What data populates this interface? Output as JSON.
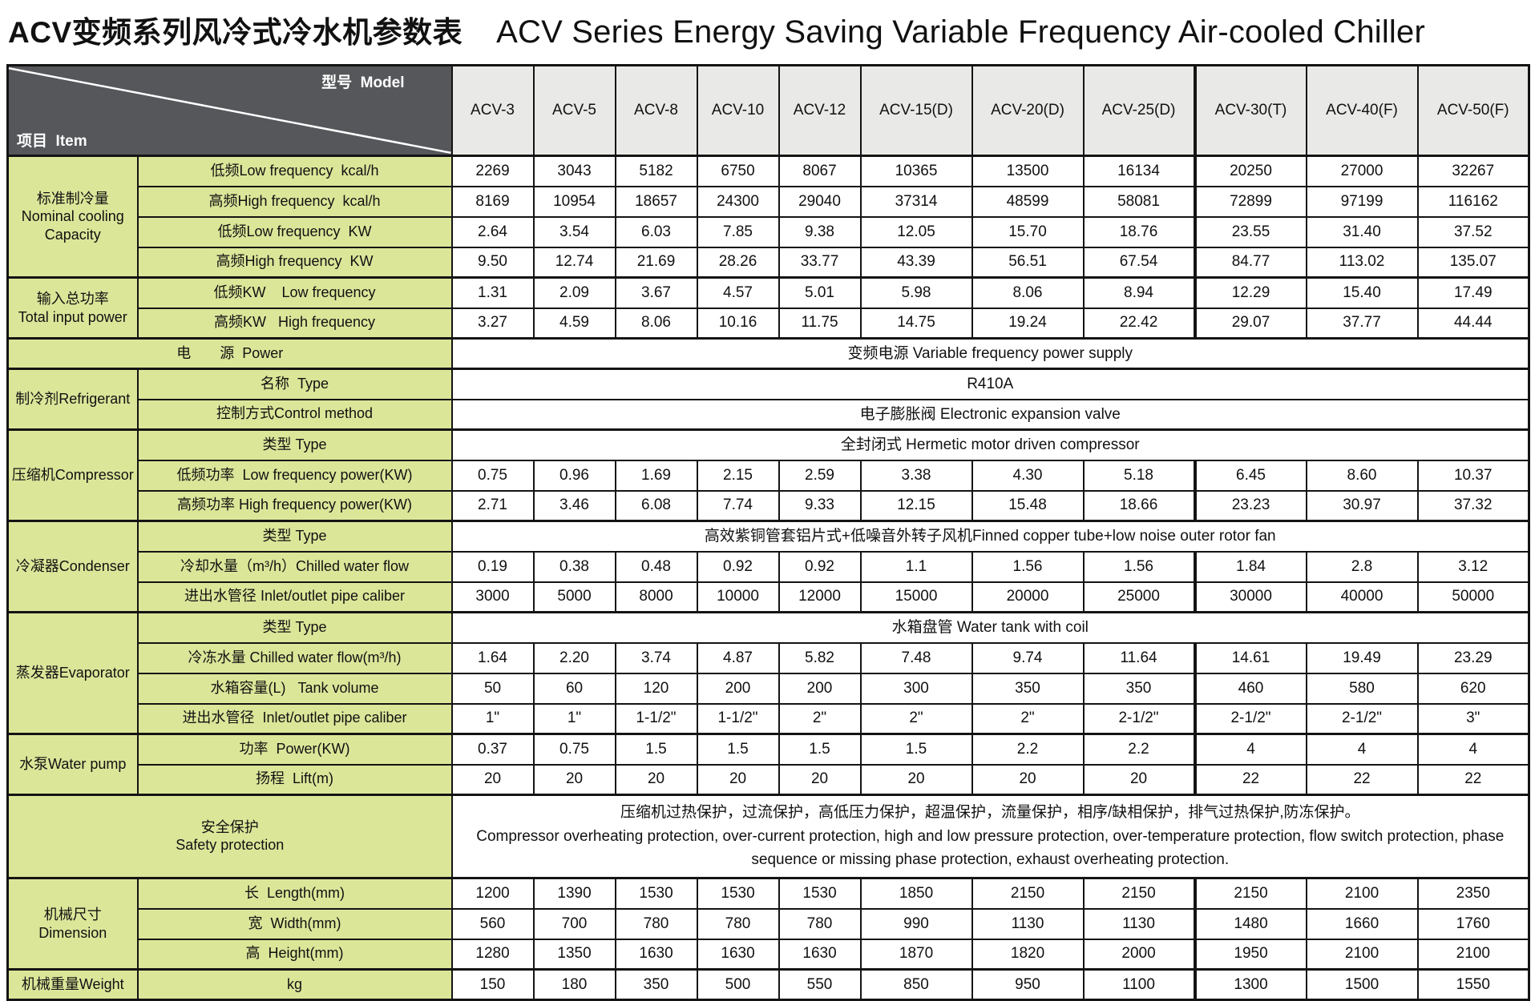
{
  "title": {
    "zh": "ACV变频系列风冷式冷水机参数表",
    "en": "ACV Series Energy Saving Variable Frequency Air-cooled Chiller"
  },
  "table": {
    "corner": {
      "model_label": "型号  Model",
      "item_label": "项目  Item"
    },
    "models": [
      "ACV-3",
      "ACV-5",
      "ACV-8",
      "ACV-10",
      "ACV-12",
      "ACV-15(D)",
      "ACV-20(D)",
      "ACV-25(D)",
      "ACV-30(T)",
      "ACV-40(F)",
      "ACV-50(F)"
    ],
    "rows": [
      {
        "section": true,
        "group": [
          "标准制冷量",
          "Nominal cooling",
          "Capacity"
        ],
        "groupspan": 4,
        "label": "低频Low frequency  kcal/h",
        "values": [
          "2269",
          "3043",
          "5182",
          "6750",
          "8067",
          "10365",
          "13500",
          "16134",
          "20250",
          "27000",
          "32267"
        ]
      },
      {
        "label": "高频High frequency  kcal/h",
        "values": [
          "8169",
          "10954",
          "18657",
          "24300",
          "29040",
          "37314",
          "48599",
          "58081",
          "72899",
          "97199",
          "116162"
        ]
      },
      {
        "label": "低频Low frequency  KW",
        "values": [
          "2.64",
          "3.54",
          "6.03",
          "7.85",
          "9.38",
          "12.05",
          "15.70",
          "18.76",
          "23.55",
          "31.40",
          "37.52"
        ]
      },
      {
        "label": "高频High frequency  KW",
        "values": [
          "9.50",
          "12.74",
          "21.69",
          "28.26",
          "33.77",
          "43.39",
          "56.51",
          "67.54",
          "84.77",
          "113.02",
          "135.07"
        ]
      },
      {
        "section": true,
        "group": [
          "输入总功率",
          "Total input power"
        ],
        "groupspan": 2,
        "label": "低频KW    Low frequency",
        "values": [
          "1.31",
          "2.09",
          "3.67",
          "4.57",
          "5.01",
          "5.98",
          "8.06",
          "8.94",
          "12.29",
          "15.40",
          "17.49"
        ]
      },
      {
        "label": "高频KW   High frequency",
        "values": [
          "3.27",
          "4.59",
          "8.06",
          "10.16",
          "11.75",
          "14.75",
          "19.24",
          "22.42",
          "29.07",
          "37.77",
          "44.44"
        ]
      },
      {
        "section": true,
        "label2": [
          "电　　源  Power"
        ],
        "span": "变频电源 Variable frequency power supply"
      },
      {
        "section": true,
        "group": [
          "制冷剂Refrigerant"
        ],
        "groupspan": 2,
        "label": "名称  Type",
        "span": "R410A"
      },
      {
        "label": "控制方式Control method",
        "span": "电子膨胀阀 Electronic expansion valve"
      },
      {
        "section": true,
        "group": [
          "压缩机Compressor"
        ],
        "groupspan": 3,
        "label": "类型 Type",
        "span": "全封闭式 Hermetic motor driven compressor"
      },
      {
        "label": "低频功率  Low frequency power(KW)",
        "values": [
          "0.75",
          "0.96",
          "1.69",
          "2.15",
          "2.59",
          "3.38",
          "4.30",
          "5.18",
          "6.45",
          "8.60",
          "10.37"
        ]
      },
      {
        "label": "高频功率 High frequency power(KW)",
        "values": [
          "2.71",
          "3.46",
          "6.08",
          "7.74",
          "9.33",
          "12.15",
          "15.48",
          "18.66",
          "23.23",
          "30.97",
          "37.32"
        ]
      },
      {
        "section": true,
        "group": [
          "冷凝器Condenser"
        ],
        "groupspan": 3,
        "label": "类型 Type",
        "span": "高效紫铜管套铝片式+低噪音外转子风机Finned copper tube+low noise outer rotor fan"
      },
      {
        "label": "冷却水量（m³/h）Chilled water flow",
        "values": [
          "0.19",
          "0.38",
          "0.48",
          "0.92",
          "0.92",
          "1.1",
          "1.56",
          "1.56",
          "1.84",
          "2.8",
          "3.12"
        ]
      },
      {
        "label": "进出水管径 Inlet/outlet pipe caliber",
        "values": [
          "3000",
          "5000",
          "8000",
          "10000",
          "12000",
          "15000",
          "20000",
          "25000",
          "30000",
          "40000",
          "50000"
        ]
      },
      {
        "section": true,
        "group": [
          "蒸发器Evaporator"
        ],
        "groupspan": 4,
        "label": "类型 Type",
        "span": "水箱盘管 Water tank with coil"
      },
      {
        "label": "冷冻水量 Chilled water flow(m³/h)",
        "values": [
          "1.64",
          "2.20",
          "3.74",
          "4.87",
          "5.82",
          "7.48",
          "9.74",
          "11.64",
          "14.61",
          "19.49",
          "23.29"
        ]
      },
      {
        "label": "水箱容量(L)   Tank volume",
        "values": [
          "50",
          "60",
          "120",
          "200",
          "200",
          "300",
          "350",
          "350",
          "460",
          "580",
          "620"
        ]
      },
      {
        "label": "进出水管径  Inlet/outlet pipe caliber",
        "values": [
          "1\"",
          "1\"",
          "1-1/2\"",
          "1-1/2\"",
          "2\"",
          "2\"",
          "2\"",
          "2-1/2\"",
          "2-1/2\"",
          "2-1/2\"",
          "3\""
        ]
      },
      {
        "section": true,
        "group": [
          "水泵Water pump"
        ],
        "groupspan": 2,
        "label": "功率  Power(KW)",
        "values": [
          "0.37",
          "0.75",
          "1.5",
          "1.5",
          "1.5",
          "1.5",
          "2.2",
          "2.2",
          "4",
          "4",
          "4"
        ]
      },
      {
        "label": "扬程  Lift(m)",
        "values": [
          "20",
          "20",
          "20",
          "20",
          "20",
          "20",
          "20",
          "20",
          "22",
          "22",
          "22"
        ]
      },
      {
        "section": true,
        "tall": true,
        "label2": [
          "安全保护",
          "Safety protection"
        ],
        "span": [
          "压缩机过热保护，过流保护，高低压力保护，超温保护，流量保护，相序/缺相保护，排气过热保护,防冻保护。",
          "Compressor overheating protection, over-current protection, high and low pressure protection, over-temperature protection, flow switch protection, phase sequence or missing phase protection, exhaust overheating protection."
        ]
      },
      {
        "section": true,
        "group": [
          "机械尺寸Dimension"
        ],
        "groupspan": 3,
        "label": "长  Length(mm)",
        "values": [
          "1200",
          "1390",
          "1530",
          "1530",
          "1530",
          "1850",
          "2150",
          "2150",
          "2150",
          "2100",
          "2350"
        ]
      },
      {
        "label": "宽  Width(mm)",
        "values": [
          "560",
          "700",
          "780",
          "780",
          "780",
          "990",
          "1130",
          "1130",
          "1480",
          "1660",
          "1760"
        ]
      },
      {
        "label": "高  Height(mm)",
        "values": [
          "1280",
          "1350",
          "1630",
          "1630",
          "1630",
          "1870",
          "1820",
          "2000",
          "1950",
          "2100",
          "2100"
        ]
      },
      {
        "section": true,
        "group": [
          "机械重量Weight"
        ],
        "groupspan": 1,
        "label": "kg",
        "values": [
          "150",
          "180",
          "350",
          "500",
          "550",
          "850",
          "950",
          "1100",
          "1300",
          "1500",
          "1550"
        ]
      }
    ]
  },
  "colors": {
    "header_dark": "#56575b",
    "header_light": "#e9e9e7",
    "label_green": "#dce699",
    "border": "#141414"
  }
}
